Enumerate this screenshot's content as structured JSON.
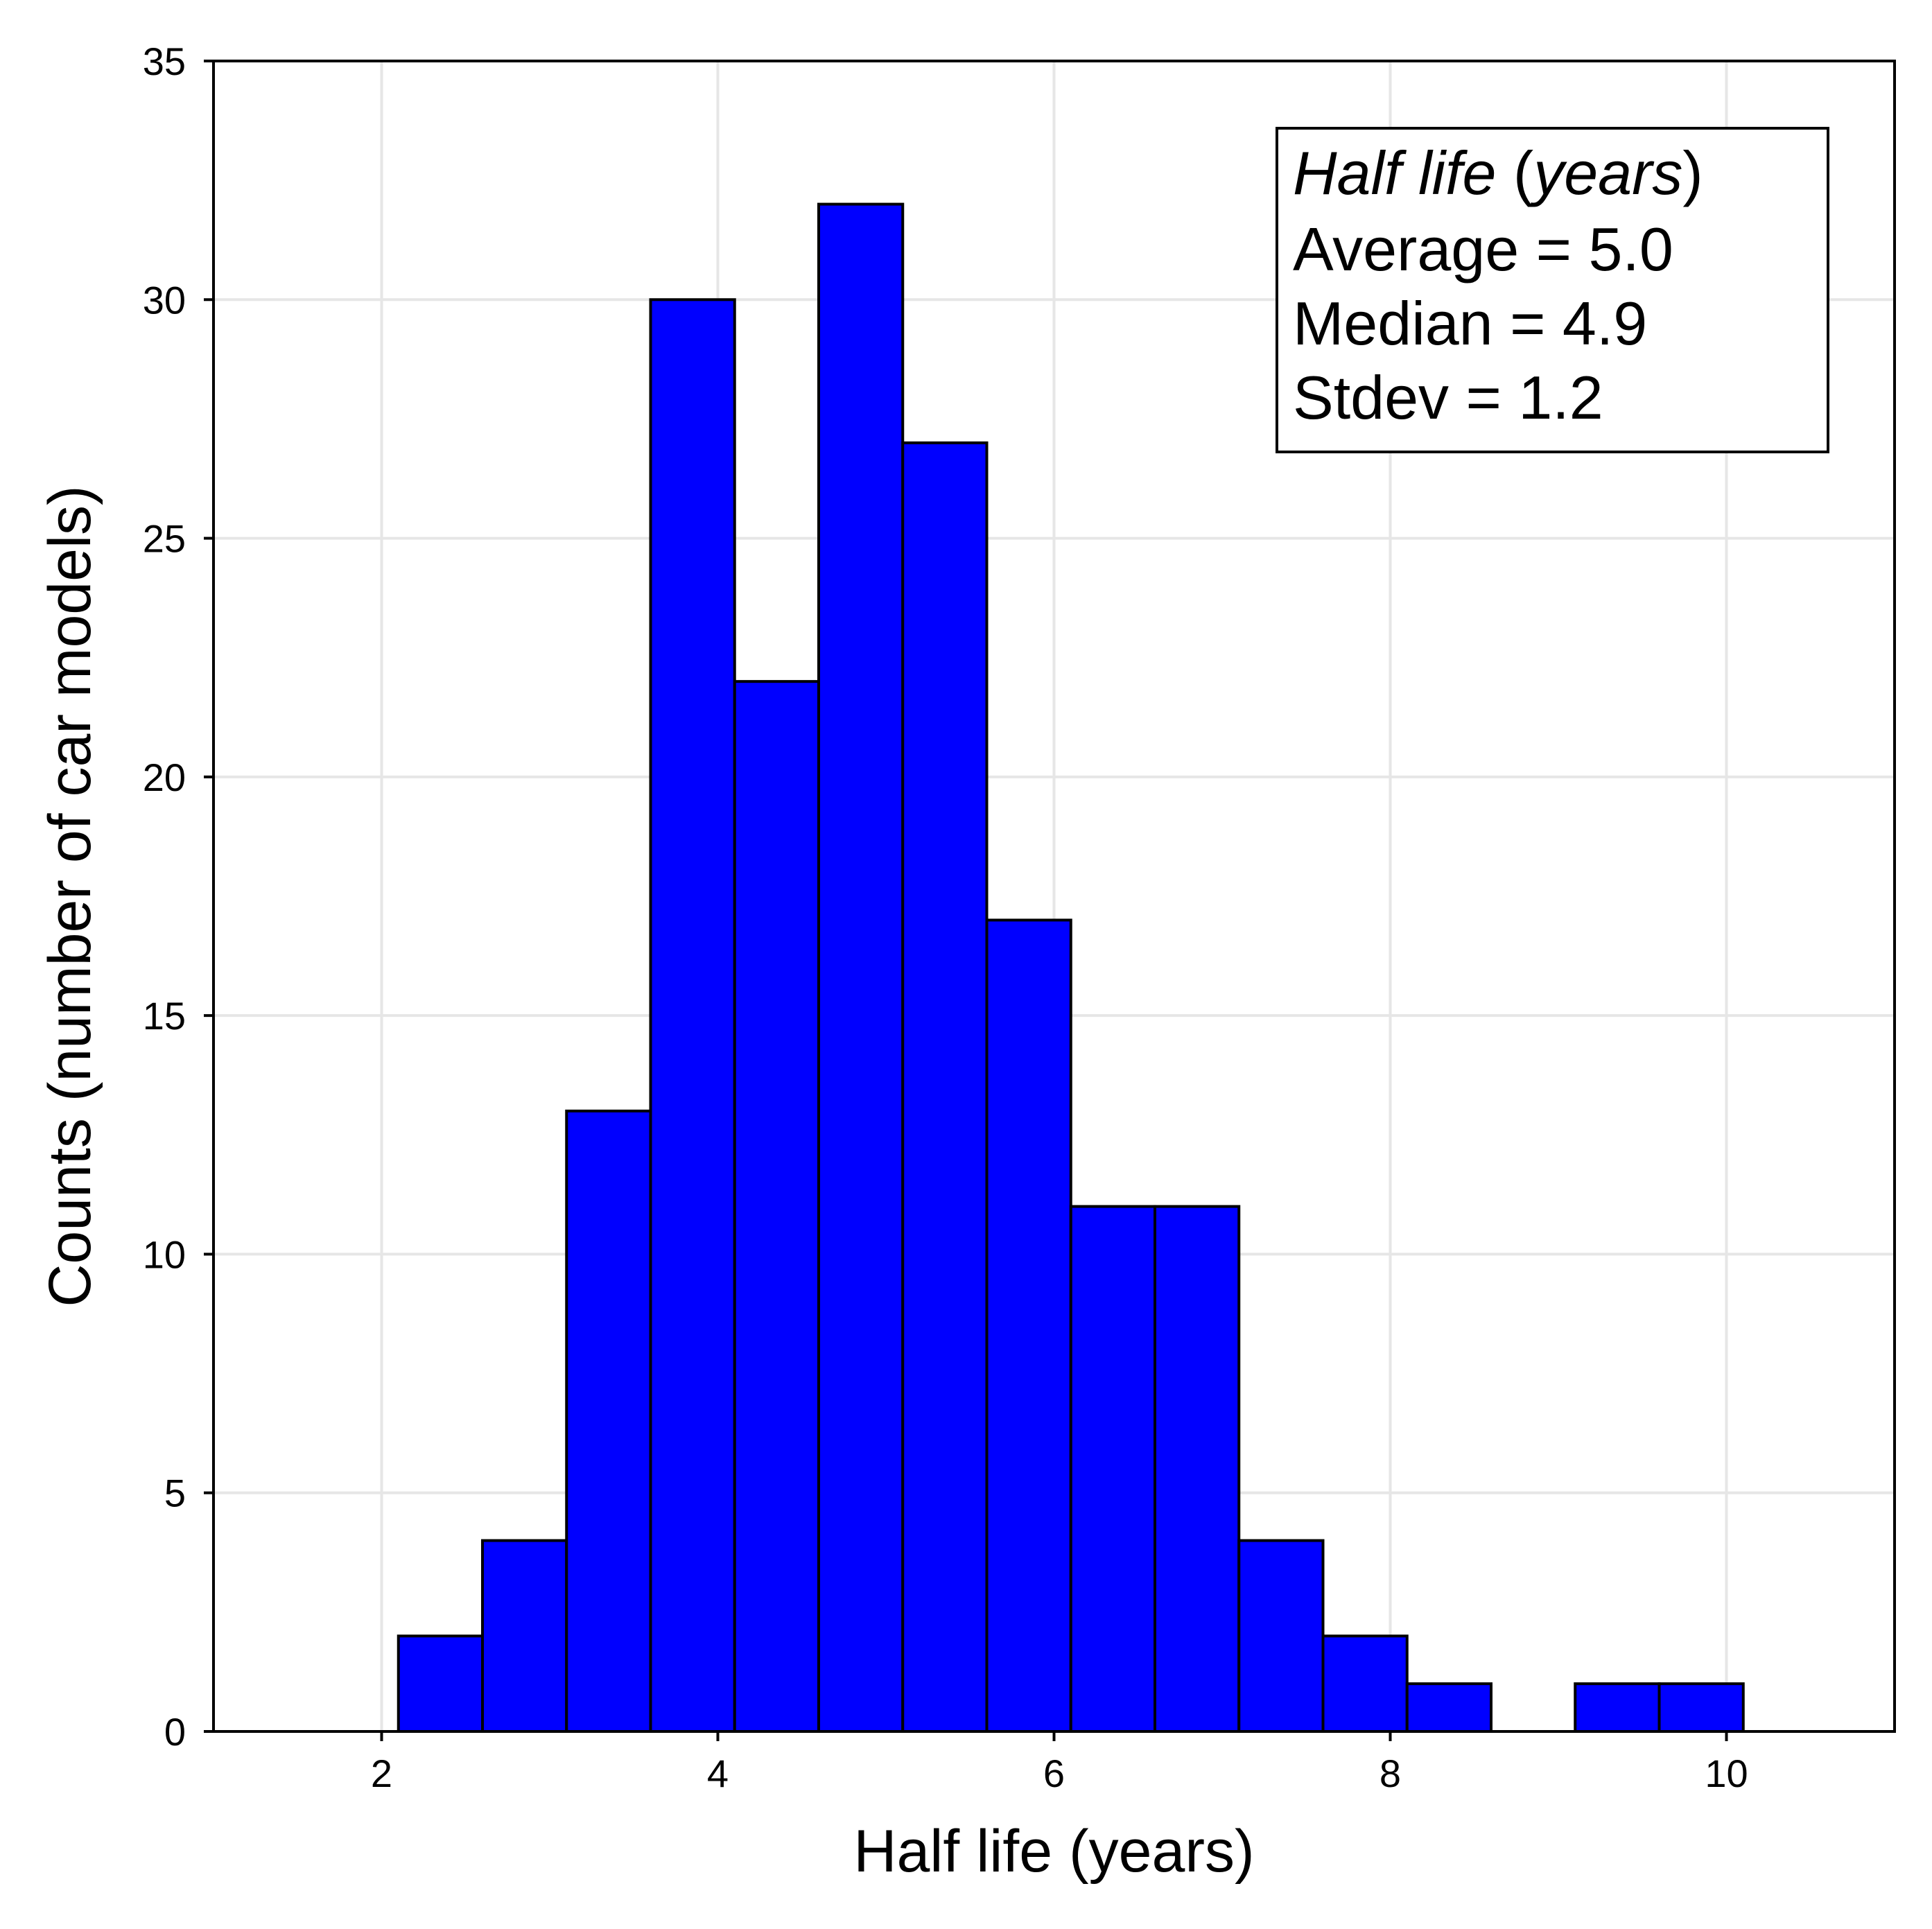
{
  "chart_data": {
    "type": "bar",
    "title": "",
    "xlabel": "Half life (years)",
    "ylabel": "Counts (number of car models)",
    "xlim": [
      1,
      11
    ],
    "ylim": [
      0,
      35
    ],
    "xticks": [
      2,
      4,
      6,
      8,
      10
    ],
    "yticks": [
      0,
      5,
      10,
      15,
      20,
      25,
      30,
      35
    ],
    "grid": true,
    "bar_color": "#0000ff",
    "edge_color": "#000000",
    "bins": [
      {
        "x0": 2.1,
        "x1": 2.6,
        "count": 2
      },
      {
        "x0": 2.6,
        "x1": 3.1,
        "count": 4
      },
      {
        "x0": 3.1,
        "x1": 3.6,
        "count": 13
      },
      {
        "x0": 3.6,
        "x1": 4.1,
        "count": 30
      },
      {
        "x0": 4.1,
        "x1": 4.6,
        "count": 22
      },
      {
        "x0": 4.6,
        "x1": 5.1,
        "count": 32
      },
      {
        "x0": 5.1,
        "x1": 5.6,
        "count": 27
      },
      {
        "x0": 5.6,
        "x1": 6.1,
        "count": 17
      },
      {
        "x0": 6.1,
        "x1": 6.6,
        "count": 11
      },
      {
        "x0": 6.6,
        "x1": 7.1,
        "count": 11
      },
      {
        "x0": 7.1,
        "x1": 7.6,
        "count": 4
      },
      {
        "x0": 7.6,
        "x1": 8.1,
        "count": 2
      },
      {
        "x0": 8.1,
        "x1": 8.6,
        "count": 1
      },
      {
        "x0": 8.6,
        "x1": 9.1,
        "count": 0
      },
      {
        "x0": 9.1,
        "x1": 9.6,
        "count": 1
      },
      {
        "x0": 9.6,
        "x1": 10.1,
        "count": 1
      }
    ],
    "stats_box": {
      "header_italic_1": "Half life",
      "header_open": " (",
      "header_italic_2": "years",
      "header_close": ")",
      "lines": [
        "Average = 5.0",
        "Median = 4.9",
        "Stdev = 1.2"
      ],
      "placement": "top-right"
    }
  }
}
